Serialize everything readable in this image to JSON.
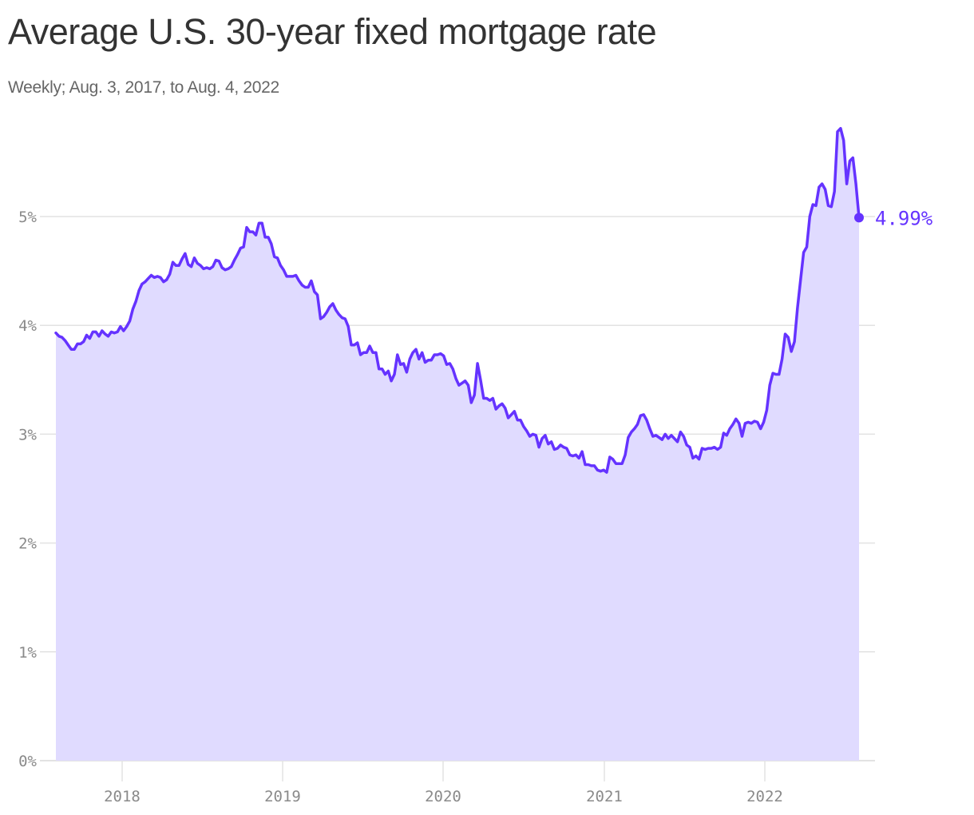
{
  "header": {
    "title": "Average U.S. 30-year fixed mortgage rate",
    "subtitle": "Weekly; Aug. 3, 2017, to Aug. 4, 2022"
  },
  "colors": {
    "line": "#6533ff",
    "area": "#e0dbff",
    "grid": "#e2e2e2",
    "axis_text": "#8a8a8a"
  },
  "end_label": "4.99%",
  "chart_data": {
    "type": "area",
    "title": "Average U.S. 30-year fixed mortgage rate",
    "subtitle": "Weekly; Aug. 3, 2017, to Aug. 4, 2022",
    "xlabel": "",
    "ylabel": "",
    "ylim": [
      0,
      5.81
    ],
    "yticks": [
      "0%",
      "1%",
      "2%",
      "3%",
      "4%",
      "5%"
    ],
    "xticks": [
      "2018",
      "2019",
      "2020",
      "2021",
      "2022"
    ],
    "grid": true,
    "x_start": "2017-08-03",
    "x_end": "2022-08-04",
    "frequency": "weekly",
    "annotation": {
      "label": "4.99%",
      "x": "2022-08-04",
      "y": 4.99
    },
    "series": [
      {
        "name": "30-year fixed rate",
        "values": [
          3.93,
          3.9,
          3.89,
          3.86,
          3.82,
          3.78,
          3.78,
          3.83,
          3.83,
          3.85,
          3.91,
          3.88,
          3.94,
          3.94,
          3.9,
          3.95,
          3.92,
          3.9,
          3.94,
          3.93,
          3.94,
          3.99,
          3.95,
          3.99,
          4.04,
          4.15,
          4.22,
          4.32,
          4.38,
          4.4,
          4.43,
          4.46,
          4.44,
          4.45,
          4.44,
          4.4,
          4.42,
          4.47,
          4.58,
          4.55,
          4.55,
          4.61,
          4.66,
          4.56,
          4.54,
          4.62,
          4.57,
          4.55,
          4.52,
          4.53,
          4.52,
          4.54,
          4.6,
          4.59,
          4.53,
          4.51,
          4.52,
          4.54,
          4.6,
          4.65,
          4.71,
          4.72,
          4.9,
          4.86,
          4.86,
          4.83,
          4.94,
          4.94,
          4.81,
          4.81,
          4.75,
          4.63,
          4.62,
          4.55,
          4.51,
          4.45,
          4.45,
          4.45,
          4.46,
          4.41,
          4.37,
          4.35,
          4.35,
          4.41,
          4.31,
          4.28,
          4.06,
          4.08,
          4.12,
          4.17,
          4.2,
          4.14,
          4.1,
          4.07,
          4.06,
          3.99,
          3.82,
          3.82,
          3.84,
          3.73,
          3.75,
          3.75,
          3.81,
          3.75,
          3.75,
          3.6,
          3.6,
          3.55,
          3.58,
          3.49,
          3.55,
          3.73,
          3.64,
          3.65,
          3.57,
          3.69,
          3.75,
          3.78,
          3.69,
          3.75,
          3.66,
          3.68,
          3.68,
          3.73,
          3.73,
          3.74,
          3.72,
          3.64,
          3.65,
          3.6,
          3.51,
          3.45,
          3.47,
          3.49,
          3.45,
          3.29,
          3.36,
          3.65,
          3.5,
          3.33,
          3.33,
          3.31,
          3.33,
          3.23,
          3.26,
          3.28,
          3.24,
          3.15,
          3.18,
          3.21,
          3.13,
          3.13,
          3.07,
          3.03,
          2.98,
          3.0,
          2.99,
          2.88,
          2.96,
          2.99,
          2.91,
          2.93,
          2.86,
          2.87,
          2.9,
          2.88,
          2.87,
          2.81,
          2.8,
          2.81,
          2.78,
          2.84,
          2.72,
          2.72,
          2.71,
          2.71,
          2.67,
          2.66,
          2.67,
          2.65,
          2.79,
          2.77,
          2.73,
          2.73,
          2.73,
          2.81,
          2.97,
          3.02,
          3.05,
          3.09,
          3.17,
          3.18,
          3.13,
          3.05,
          2.98,
          2.99,
          2.97,
          2.95,
          3.0,
          2.96,
          2.99,
          2.96,
          2.93,
          3.02,
          2.98,
          2.9,
          2.88,
          2.78,
          2.8,
          2.77,
          2.87,
          2.86,
          2.87,
          2.87,
          2.88,
          2.86,
          2.88,
          3.01,
          2.99,
          3.05,
          3.09,
          3.14,
          3.1,
          2.98,
          3.1,
          3.11,
          3.1,
          3.12,
          3.11,
          3.05,
          3.11,
          3.22,
          3.45,
          3.56,
          3.55,
          3.55,
          3.69,
          3.92,
          3.89,
          3.76,
          3.85,
          4.16,
          4.42,
          4.67,
          4.72,
          5.0,
          5.11,
          5.1,
          5.27,
          5.3,
          5.25,
          5.1,
          5.09,
          5.23,
          5.78,
          5.81,
          5.7,
          5.3,
          5.51,
          5.54,
          5.3,
          4.99
        ]
      }
    ]
  }
}
